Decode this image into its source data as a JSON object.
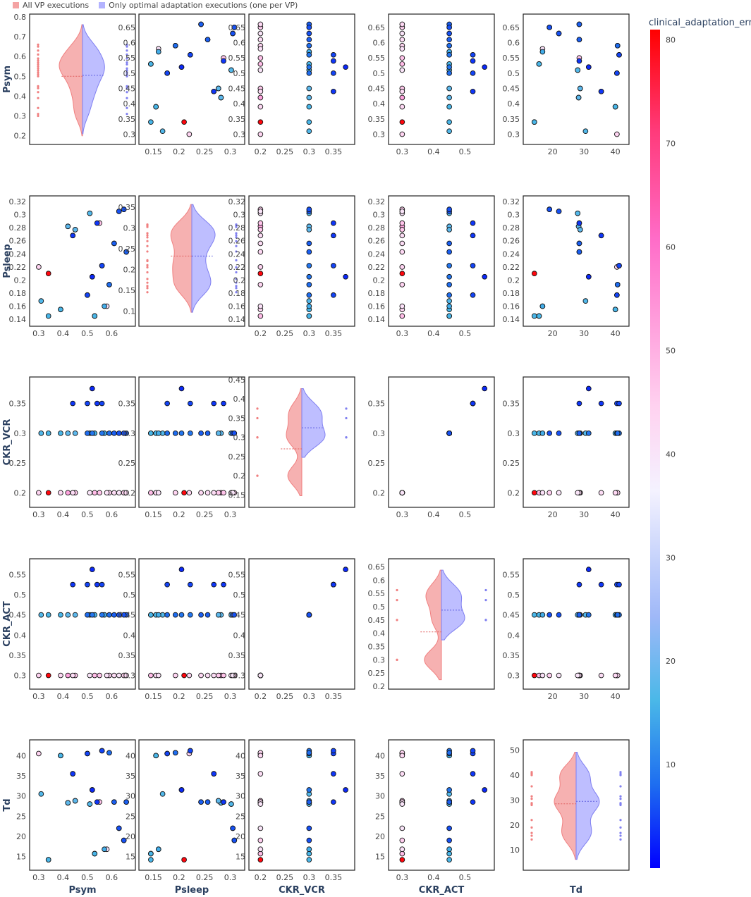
{
  "legend": {
    "all_label": "All VP executions",
    "optimal_label": "Only optimal adaptation executions (one per VP)",
    "all_color": "#f4a3a3",
    "optimal_color": "#b3b3ff"
  },
  "colorbar": {
    "title": "clinical_adaptation_error",
    "range": [
      0,
      81
    ],
    "ticks": [
      10,
      20,
      30,
      40,
      50,
      60,
      70,
      80
    ],
    "colorscale": [
      [
        0,
        "#0000ff"
      ],
      [
        0.1,
        "#1e6ef0"
      ],
      [
        0.2,
        "#4ab8e8"
      ],
      [
        0.3,
        "#9fb8f8"
      ],
      [
        0.45,
        "#f4f2ff"
      ],
      [
        0.55,
        "#ffd2f0"
      ],
      [
        0.75,
        "#ff6cc8"
      ],
      [
        0.88,
        "#ff3a7a"
      ],
      [
        1,
        "#ff0000"
      ]
    ]
  },
  "chart_data": {
    "type": "scatter",
    "variables": [
      "Psym",
      "Psleep",
      "CKR_VCR",
      "CKR_ACT",
      "Td"
    ],
    "axes": {
      "Psym": {
        "range": [
          0.28,
          0.68
        ],
        "ticks": [
          0.3,
          0.4,
          0.5,
          0.6
        ],
        "ticklabels": [
          "0.3",
          "0.4",
          "0.5",
          "0.6"
        ],
        "ticks_on_diagonal": [
          0.2,
          0.3,
          0.4,
          0.5,
          0.6,
          0.7,
          0.8
        ],
        "ticks_y": [
          0.3,
          0.35,
          0.4,
          0.45,
          0.5,
          0.55,
          0.6,
          0.65
        ],
        "range_y": [
          0.285,
          0.675
        ]
      },
      "Psleep": {
        "range": [
          0.13,
          0.32
        ],
        "ticks": [
          0.15,
          0.2,
          0.25,
          0.3
        ],
        "ticklabels": [
          "0.15",
          "0.2",
          "0.25",
          "0.3"
        ],
        "ticks_on_diagonal": [
          0.1,
          0.15,
          0.2,
          0.25,
          0.3,
          0.35
        ],
        "ticks_y": [
          0.14,
          0.16,
          0.18,
          0.2,
          0.22,
          0.24,
          0.26,
          0.28,
          0.3,
          0.32
        ],
        "range_y": [
          0.138,
          0.32
        ]
      },
      "CKR_VCR": {
        "range": [
          0.185,
          0.385
        ],
        "ticks": [
          0.2,
          0.25,
          0.3,
          0.35
        ],
        "ticklabels": [
          "0.2",
          "0.25",
          "0.3",
          "0.35"
        ],
        "ticks_on_diagonal": [
          0.15,
          0.2,
          0.25,
          0.3,
          0.35,
          0.4,
          0.45
        ],
        "ticks_y": [
          0.2,
          0.25,
          0.3,
          0.35
        ],
        "range_y": [
          0.185,
          0.385
        ]
      },
      "CKR_ACT": {
        "range": [
          0.27,
          0.58
        ],
        "ticks": [
          0.3,
          0.4,
          0.5
        ],
        "ticklabels": [
          "0.3",
          "0.4",
          "0.5"
        ],
        "ticks_on_diagonal": [
          0.2,
          0.25,
          0.3,
          0.35,
          0.4,
          0.45,
          0.5,
          0.55,
          0.6,
          0.65
        ],
        "ticks_y": [
          0.3,
          0.35,
          0.4,
          0.45,
          0.5,
          0.55
        ],
        "range_y": [
          0.28,
          0.575
        ]
      },
      "Td": {
        "range": [
          12,
          43
        ],
        "ticks": [
          20,
          30,
          40
        ],
        "ticklabels": [
          "20",
          "30",
          "40"
        ],
        "ticks_on_diagonal": [
          10,
          20,
          30,
          40,
          50
        ],
        "ticks_y": [
          15,
          20,
          25,
          30,
          35,
          40
        ],
        "range_y": [
          13,
          42.5
        ]
      }
    },
    "diagonal_ranges": {
      "Psym": [
        0.17,
        0.8
      ],
      "Psleep": [
        0.07,
        0.37
      ],
      "CKR_VCR": [
        0.125,
        0.45
      ],
      "CKR_ACT": [
        0.2,
        0.67
      ],
      "Td": [
        3,
        53
      ]
    },
    "axis_titles": {
      "x": [
        "Psym",
        "Psleep",
        "CKR_VCR",
        "CKR_ACT",
        "Td"
      ],
      "y": [
        "Psym",
        "Psleep",
        "CKR_VCR",
        "CKR_ACT",
        "Td"
      ]
    },
    "points": [
      {
        "Psym": 0.3,
        "Psleep": 0.22,
        "CKR_VCR": 0.2,
        "CKR_ACT": 0.3,
        "Td": 40.5,
        "error": 44
      },
      {
        "Psym": 0.31,
        "Psleep": 0.168,
        "CKR_VCR": 0.3,
        "CKR_ACT": 0.45,
        "Td": 30.5,
        "error": 17
      },
      {
        "Psym": 0.34,
        "Psleep": 0.21,
        "CKR_VCR": 0.2,
        "CKR_ACT": 0.3,
        "Td": 14.2,
        "error": 80
      },
      {
        "Psym": 0.34,
        "Psleep": 0.145,
        "CKR_VCR": 0.3,
        "CKR_ACT": 0.45,
        "Td": 14.2,
        "error": 16
      },
      {
        "Psym": 0.39,
        "Psleep": 0.155,
        "CKR_VCR": 0.2,
        "CKR_ACT": 0.3,
        "Td": 40.0,
        "error": 43
      },
      {
        "Psym": 0.39,
        "Psleep": 0.155,
        "CKR_VCR": 0.3,
        "CKR_ACT": 0.45,
        "Td": 40.0,
        "error": 16
      },
      {
        "Psym": 0.42,
        "Psleep": 0.282,
        "CKR_VCR": 0.2,
        "CKR_ACT": 0.3,
        "Td": 28.3,
        "error": 52
      },
      {
        "Psym": 0.42,
        "Psleep": 0.282,
        "CKR_VCR": 0.3,
        "CKR_ACT": 0.45,
        "Td": 28.3,
        "error": 18
      },
      {
        "Psym": 0.44,
        "Psleep": 0.268,
        "CKR_VCR": 0.35,
        "CKR_ACT": 0.525,
        "Td": 35.5,
        "error": 4
      },
      {
        "Psym": 0.44,
        "Psleep": 0.268,
        "CKR_VCR": 0.2,
        "CKR_ACT": 0.3,
        "Td": 35.5,
        "error": 42
      },
      {
        "Psym": 0.45,
        "Psleep": 0.277,
        "CKR_VCR": 0.3,
        "CKR_ACT": 0.45,
        "Td": 28.8,
        "error": 18
      },
      {
        "Psym": 0.45,
        "Psleep": 0.277,
        "CKR_VCR": 0.2,
        "CKR_ACT": 0.3,
        "Td": 28.8,
        "error": 46
      },
      {
        "Psym": 0.5,
        "Psleep": 0.177,
        "CKR_VCR": 0.35,
        "CKR_ACT": 0.525,
        "Td": 40.5,
        "error": 5
      },
      {
        "Psym": 0.5,
        "Psleep": 0.177,
        "CKR_VCR": 0.3,
        "CKR_ACT": 0.45,
        "Td": 40.5,
        "error": 8
      },
      {
        "Psym": 0.51,
        "Psleep": 0.302,
        "CKR_VCR": 0.3,
        "CKR_ACT": 0.45,
        "Td": 28.0,
        "error": 17
      },
      {
        "Psym": 0.51,
        "Psleep": 0.302,
        "CKR_VCR": 0.2,
        "CKR_ACT": 0.3,
        "Td": 28.0,
        "error": 40
      },
      {
        "Psym": 0.52,
        "Psleep": 0.205,
        "CKR_VCR": 0.375,
        "CKR_ACT": 0.5625,
        "Td": 31.5,
        "error": 3
      },
      {
        "Psym": 0.52,
        "Psleep": 0.205,
        "CKR_VCR": 0.3,
        "CKR_ACT": 0.45,
        "Td": 31.5,
        "error": 9
      },
      {
        "Psym": 0.53,
        "Psleep": 0.145,
        "CKR_VCR": 0.3,
        "CKR_ACT": 0.45,
        "Td": 15.7,
        "error": 16
      },
      {
        "Psym": 0.53,
        "Psleep": 0.145,
        "CKR_VCR": 0.2,
        "CKR_ACT": 0.3,
        "Td": 15.7,
        "error": 48
      },
      {
        "Psym": 0.54,
        "Psleep": 0.287,
        "CKR_VCR": 0.35,
        "CKR_ACT": 0.525,
        "Td": 28.5,
        "error": 4
      },
      {
        "Psym": 0.55,
        "Psleep": 0.287,
        "CKR_VCR": 0.2,
        "CKR_ACT": 0.3,
        "Td": 28.5,
        "error": 47
      },
      {
        "Psym": 0.56,
        "Psleep": 0.222,
        "CKR_VCR": 0.35,
        "CKR_ACT": 0.525,
        "Td": 41.2,
        "error": 5
      },
      {
        "Psym": 0.56,
        "Psleep": 0.222,
        "CKR_VCR": 0.3,
        "CKR_ACT": 0.45,
        "Td": 41.2,
        "error": 9
      },
      {
        "Psym": 0.57,
        "Psleep": 0.16,
        "CKR_VCR": 0.3,
        "CKR_ACT": 0.45,
        "Td": 16.8,
        "error": 15
      },
      {
        "Psym": 0.58,
        "Psleep": 0.16,
        "CKR_VCR": 0.2,
        "CKR_ACT": 0.3,
        "Td": 16.8,
        "error": 41
      },
      {
        "Psym": 0.59,
        "Psleep": 0.193,
        "CKR_VCR": 0.3,
        "CKR_ACT": 0.45,
        "Td": 40.7,
        "error": 8
      },
      {
        "Psym": 0.59,
        "Psleep": 0.193,
        "CKR_VCR": 0.2,
        "CKR_ACT": 0.3,
        "Td": 40.7,
        "error": 44
      },
      {
        "Psym": 0.61,
        "Psleep": 0.256,
        "CKR_VCR": 0.3,
        "CKR_ACT": 0.45,
        "Td": 28.5,
        "error": 7
      },
      {
        "Psym": 0.61,
        "Psleep": 0.256,
        "CKR_VCR": 0.2,
        "CKR_ACT": 0.3,
        "Td": 28.5,
        "error": 42
      },
      {
        "Psym": 0.63,
        "Psleep": 0.305,
        "CKR_VCR": 0.3,
        "CKR_ACT": 0.45,
        "Td": 22.0,
        "error": 6
      },
      {
        "Psym": 0.63,
        "Psleep": 0.305,
        "CKR_VCR": 0.2,
        "CKR_ACT": 0.3,
        "Td": 22.0,
        "error": 40
      },
      {
        "Psym": 0.65,
        "Psleep": 0.308,
        "CKR_VCR": 0.3,
        "CKR_ACT": 0.45,
        "Td": 19.0,
        "error": 6
      },
      {
        "Psym": 0.65,
        "Psleep": 0.308,
        "CKR_VCR": 0.2,
        "CKR_ACT": 0.3,
        "Td": 19.0,
        "error": 45
      },
      {
        "Psym": 0.66,
        "Psleep": 0.243,
        "CKR_VCR": 0.3,
        "CKR_ACT": 0.45,
        "Td": 28.5,
        "error": 7
      },
      {
        "Psym": 0.66,
        "Psleep": 0.243,
        "CKR_VCR": 0.2,
        "CKR_ACT": 0.3,
        "Td": 28.5,
        "error": 43
      }
    ],
    "violins": {
      "Psym": {
        "all_median": 0.5,
        "optimal_median": 0.505,
        "all_samples": [
          0.3,
          0.31,
          0.34,
          0.39,
          0.42,
          0.44,
          0.45,
          0.5,
          0.51,
          0.52,
          0.53,
          0.54,
          0.55,
          0.56,
          0.57,
          0.58,
          0.59,
          0.61,
          0.63,
          0.65,
          0.66
        ],
        "optimal_samples": [
          0.31,
          0.34,
          0.39,
          0.42,
          0.44,
          0.45,
          0.5,
          0.51,
          0.52,
          0.53,
          0.54,
          0.56,
          0.57,
          0.59,
          0.61,
          0.63,
          0.65,
          0.66
        ]
      },
      "Psleep": {
        "all_median": 0.232,
        "optimal_median": 0.232,
        "all_samples": [
          0.145,
          0.155,
          0.16,
          0.168,
          0.177,
          0.193,
          0.205,
          0.21,
          0.22,
          0.222,
          0.243,
          0.256,
          0.268,
          0.277,
          0.282,
          0.287,
          0.302,
          0.305,
          0.308
        ],
        "optimal_samples": [
          0.145,
          0.155,
          0.16,
          0.168,
          0.177,
          0.193,
          0.205,
          0.222,
          0.243,
          0.256,
          0.268,
          0.277,
          0.282,
          0.287,
          0.302,
          0.305,
          0.308
        ]
      },
      "CKR_VCR": {
        "all_median": 0.27,
        "optimal_median": 0.325,
        "all_samples": [
          0.2,
          0.2,
          0.3,
          0.3,
          0.35,
          0.375
        ],
        "optimal_samples": [
          0.3,
          0.3,
          0.35,
          0.375
        ]
      },
      "CKR_ACT": {
        "all_median": 0.405,
        "optimal_median": 0.487,
        "all_samples": [
          0.3,
          0.3,
          0.45,
          0.525,
          0.5625
        ],
        "optimal_samples": [
          0.45,
          0.45,
          0.525,
          0.5625
        ]
      },
      "Td": {
        "all_median": 28.5,
        "optimal_median": 29.5,
        "all_samples": [
          14.2,
          15.7,
          16.8,
          19.0,
          22.0,
          28.0,
          28.3,
          28.5,
          28.8,
          30.5,
          31.5,
          35.5,
          40.0,
          40.5,
          40.7,
          41.2
        ],
        "optimal_samples": [
          14.2,
          15.7,
          16.8,
          19.0,
          22.0,
          28.0,
          28.3,
          28.5,
          28.8,
          30.5,
          31.5,
          35.5,
          40.0,
          40.5,
          41.2
        ]
      }
    }
  }
}
